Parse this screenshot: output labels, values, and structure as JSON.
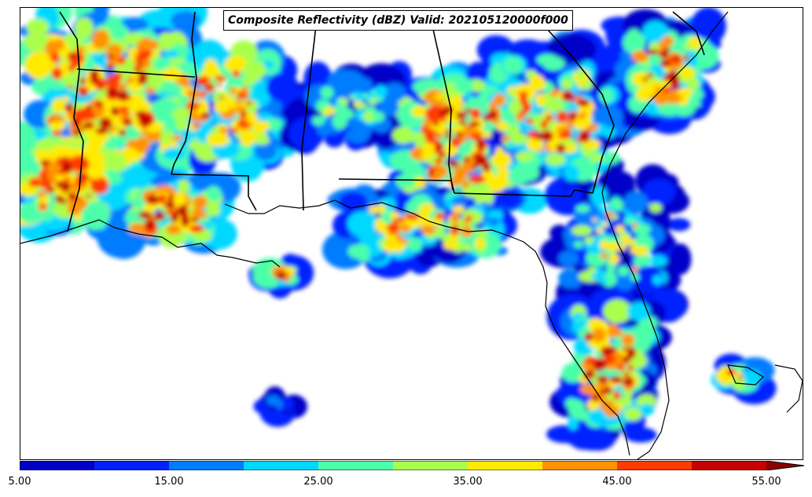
{
  "title": "Composite Reflectivity (dBZ) Valid: 202105120000f000",
  "colorbar": {
    "min": 5,
    "max": 55,
    "step": 5,
    "extend": "max",
    "colors": [
      "#0000c8",
      "#0020ff",
      "#007cff",
      "#00d8ff",
      "#4cffaa",
      "#aaff4c",
      "#ffea00",
      "#ff9300",
      "#ff3a00",
      "#c80000"
    ],
    "extend_color": "#8b0000",
    "tick_labels": [
      "5.00",
      "15.00",
      "25.00",
      "35.00",
      "45.00",
      "55.00"
    ],
    "tick_values": [
      5,
      15,
      25,
      35,
      45,
      55
    ]
  }
}
